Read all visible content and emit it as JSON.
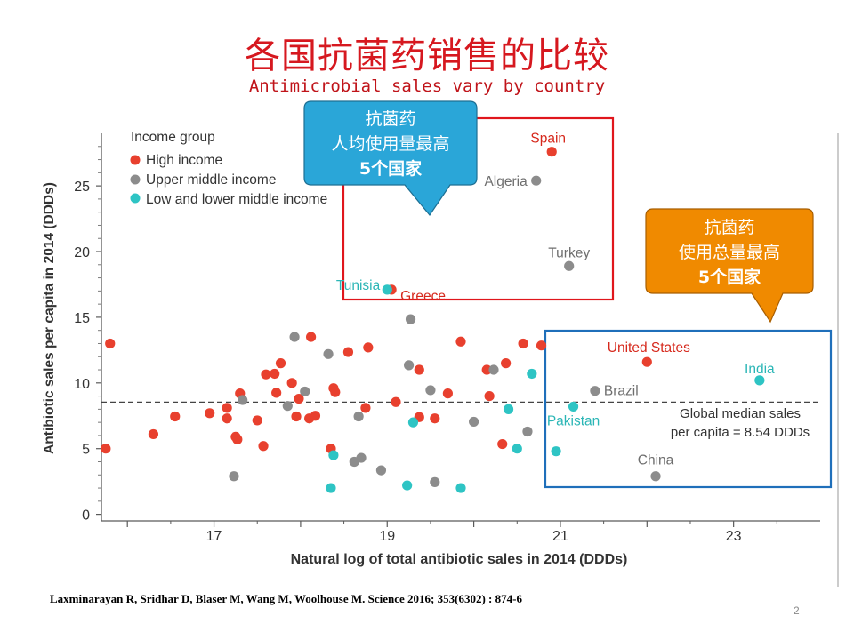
{
  "slide": {
    "title": "各国抗菌药销售的比较",
    "subtitle": "Antimicrobial sales vary by country",
    "citation": "Laxminarayan R, Sridhar D, Blaser M, Wang M, Woolhouse M. Science 2016; 353(6302) : 874-6",
    "page_number": "2"
  },
  "callouts": {
    "per_capita": {
      "lines": [
        "抗菌药",
        "人均使用量最高",
        "5个国家"
      ],
      "color": "#2aa6d8",
      "box_color": "#e0161c"
    },
    "total": {
      "lines": [
        "抗菌药",
        "使用总量最高",
        "5个国家"
      ],
      "color": "#f08a00",
      "box_color": "#1f6fba"
    }
  },
  "chart_data": {
    "type": "scatter",
    "xlabel": "Natural log of total antibiotic sales in 2014 (DDDs)",
    "ylabel": "Antibiotic sales per capita in 2014 (DDDs)",
    "xlim": [
      15.7,
      24.0
    ],
    "ylim": [
      -0.5,
      29
    ],
    "xticks": [
      17,
      19,
      21,
      23
    ],
    "yticks": [
      0,
      5,
      10,
      15,
      20,
      25
    ],
    "median_line": {
      "y": 8.54,
      "label_lines": [
        "Global median sales",
        "per capita  = 8.54 DDDs"
      ]
    },
    "legend": {
      "title": "Income group",
      "position": "top-left",
      "entries": [
        {
          "name": "High income",
          "color": "#e8402e"
        },
        {
          "name": "Upper middle income",
          "color": "#8c8c8c"
        },
        {
          "name": "Low and lower middle income",
          "color": "#2ec4c4"
        }
      ]
    },
    "series": [
      {
        "name": "High income",
        "color": "#e8402e",
        "points": [
          [
            15.8,
            13.0
          ],
          [
            15.75,
            5.0
          ],
          [
            16.3,
            6.1
          ],
          [
            16.55,
            7.45
          ],
          [
            16.95,
            7.7
          ],
          [
            17.15,
            7.3
          ],
          [
            17.15,
            8.1
          ],
          [
            17.25,
            5.9
          ],
          [
            17.27,
            5.7
          ],
          [
            17.3,
            9.2
          ],
          [
            17.5,
            7.15
          ],
          [
            17.57,
            5.2
          ],
          [
            17.6,
            10.65
          ],
          [
            17.7,
            10.7
          ],
          [
            17.72,
            9.25
          ],
          [
            17.77,
            11.5
          ],
          [
            17.9,
            10.0
          ],
          [
            17.95,
            7.45
          ],
          [
            17.98,
            8.8
          ],
          [
            18.1,
            7.3
          ],
          [
            18.12,
            13.5
          ],
          [
            18.17,
            7.5
          ],
          [
            18.35,
            5.0
          ],
          [
            18.38,
            9.6
          ],
          [
            18.4,
            9.3
          ],
          [
            18.55,
            12.35
          ],
          [
            18.75,
            8.1
          ],
          [
            18.78,
            12.7
          ],
          [
            19.1,
            8.55
          ],
          [
            19.37,
            7.4
          ],
          [
            19.37,
            11.0
          ],
          [
            19.55,
            7.3
          ],
          [
            19.7,
            9.2
          ],
          [
            19.85,
            13.15
          ],
          [
            20.15,
            11.0
          ],
          [
            20.18,
            9.0
          ],
          [
            20.33,
            5.35
          ],
          [
            20.37,
            11.5
          ],
          [
            20.57,
            13.0
          ],
          [
            20.78,
            12.85
          ]
        ],
        "labeled": [
          {
            "label": "Spain",
            "x": 20.9,
            "y": 27.6
          },
          {
            "label": "Greece",
            "x": 19.05,
            "y": 17.1
          },
          {
            "label": "United States",
            "x": 22.0,
            "y": 11.6
          }
        ]
      },
      {
        "name": "Upper middle income",
        "color": "#8c8c8c",
        "points": [
          [
            17.23,
            2.9
          ],
          [
            17.33,
            8.7
          ],
          [
            17.85,
            8.25
          ],
          [
            17.93,
            13.5
          ],
          [
            18.05,
            9.35
          ],
          [
            18.32,
            12.2
          ],
          [
            18.62,
            4.0
          ],
          [
            18.7,
            4.3
          ],
          [
            18.67,
            7.45
          ],
          [
            18.93,
            3.35
          ],
          [
            19.25,
            11.35
          ],
          [
            19.27,
            14.85
          ],
          [
            19.5,
            9.45
          ],
          [
            19.55,
            2.45
          ],
          [
            20.0,
            7.05
          ],
          [
            20.23,
            11.0
          ],
          [
            20.62,
            6.3
          ]
        ],
        "labeled": [
          {
            "label": "Algeria",
            "x": 20.72,
            "y": 25.4
          },
          {
            "label": "Turkey",
            "x": 21.1,
            "y": 18.9
          },
          {
            "label": "Brazil",
            "x": 21.4,
            "y": 9.4
          },
          {
            "label": "China",
            "x": 22.1,
            "y": 2.9
          }
        ]
      },
      {
        "name": "Low and lower middle income",
        "color": "#2ec4c4",
        "points": [
          [
            18.35,
            2.0
          ],
          [
            18.38,
            4.5
          ],
          [
            19.23,
            2.2
          ],
          [
            19.3,
            7.0
          ],
          [
            19.85,
            2.0
          ],
          [
            20.4,
            8.0
          ],
          [
            20.5,
            5.0
          ],
          [
            20.67,
            10.7
          ],
          [
            20.95,
            4.8
          ]
        ],
        "labeled": [
          {
            "label": "Tunisia",
            "x": 19.0,
            "y": 17.1
          },
          {
            "label": "Pakistan",
            "x": 21.15,
            "y": 8.2
          },
          {
            "label": "India",
            "x": 23.3,
            "y": 10.2
          }
        ]
      }
    ]
  }
}
